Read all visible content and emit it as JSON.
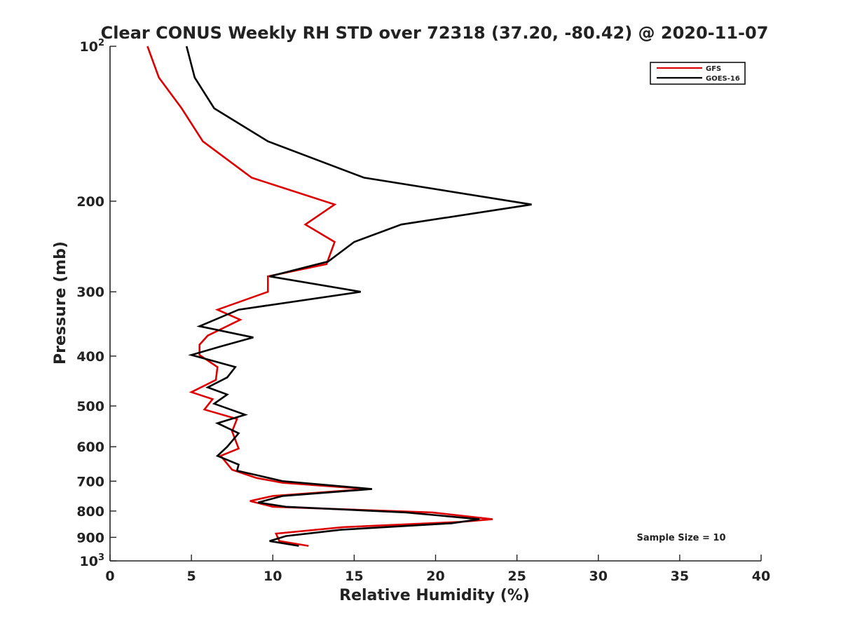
{
  "chart_data": {
    "type": "line",
    "title": "Clear CONUS Weekly RH STD over 72318 (37.20, -80.42) @ 2020-11-07",
    "xlabel": "Relative Humidity (%)",
    "ylabel": "Pressure (mb)",
    "xlim": [
      0,
      40
    ],
    "ylim": [
      100,
      1000
    ],
    "y_scale": "log",
    "y_reversed": true,
    "x_ticks": [
      "0",
      "5",
      "10",
      "15",
      "20",
      "25",
      "30",
      "35",
      "40"
    ],
    "y_ticks": [
      {
        "value": 100,
        "base": "10",
        "exp": "2"
      },
      {
        "value": 200,
        "label": "200"
      },
      {
        "value": 300,
        "label": "300"
      },
      {
        "value": 400,
        "label": "400"
      },
      {
        "value": 500,
        "label": "500"
      },
      {
        "value": 600,
        "label": "600"
      },
      {
        "value": 700,
        "label": "700"
      },
      {
        "value": 800,
        "label": "800"
      },
      {
        "value": 900,
        "label": "900"
      },
      {
        "value": 1000,
        "base": "10",
        "exp": "3"
      }
    ],
    "grid": false,
    "legend_position": "top-right",
    "annotation": "Sample Size = 10",
    "series": [
      {
        "name": "GFS",
        "color": "#dd0000",
        "points": [
          [
            2.3,
            100
          ],
          [
            3.0,
            115
          ],
          [
            4.4,
            132
          ],
          [
            5.7,
            153
          ],
          [
            8.7,
            180
          ],
          [
            13.8,
            203
          ],
          [
            12.0,
            222
          ],
          [
            13.8,
            240
          ],
          [
            13.3,
            265
          ],
          [
            9.7,
            280
          ],
          [
            9.7,
            300
          ],
          [
            6.6,
            325
          ],
          [
            8.0,
            340
          ],
          [
            6.0,
            365
          ],
          [
            5.5,
            380
          ],
          [
            5.5,
            398
          ],
          [
            6.6,
            420
          ],
          [
            6.5,
            445
          ],
          [
            5.0,
            470
          ],
          [
            6.3,
            485
          ],
          [
            5.8,
            508
          ],
          [
            7.8,
            530
          ],
          [
            7.5,
            560
          ],
          [
            7.9,
            605
          ],
          [
            6.8,
            625
          ],
          [
            7.5,
            665
          ],
          [
            9.0,
            690
          ],
          [
            10.6,
            705
          ],
          [
            15.8,
            725
          ],
          [
            10.0,
            748
          ],
          [
            8.6,
            765
          ],
          [
            10.0,
            785
          ],
          [
            19.8,
            805
          ],
          [
            23.5,
            830
          ],
          [
            21.5,
            840
          ],
          [
            14.3,
            860
          ],
          [
            10.2,
            885
          ],
          [
            10.4,
            915
          ],
          [
            12.2,
            935
          ]
        ]
      },
      {
        "name": "GOES-16",
        "color": "#000000",
        "points": [
          [
            4.7,
            100
          ],
          [
            5.2,
            115
          ],
          [
            6.4,
            132
          ],
          [
            9.7,
            153
          ],
          [
            15.6,
            180
          ],
          [
            25.9,
            203
          ],
          [
            17.9,
            222
          ],
          [
            15.0,
            240
          ],
          [
            13.4,
            262
          ],
          [
            9.8,
            280
          ],
          [
            15.4,
            300
          ],
          [
            7.9,
            325
          ],
          [
            5.5,
            350
          ],
          [
            8.8,
            368
          ],
          [
            6.8,
            383
          ],
          [
            5.0,
            398
          ],
          [
            7.7,
            420
          ],
          [
            7.2,
            440
          ],
          [
            6.0,
            460
          ],
          [
            7.2,
            475
          ],
          [
            6.4,
            495
          ],
          [
            8.3,
            520
          ],
          [
            6.6,
            540
          ],
          [
            7.9,
            565
          ],
          [
            7.2,
            600
          ],
          [
            6.6,
            625
          ],
          [
            7.9,
            650
          ],
          [
            7.8,
            668
          ],
          [
            8.9,
            680
          ],
          [
            10.6,
            700
          ],
          [
            16.1,
            725
          ],
          [
            10.6,
            748
          ],
          [
            9.1,
            770
          ],
          [
            10.8,
            785
          ],
          [
            18.2,
            805
          ],
          [
            22.7,
            830
          ],
          [
            21.0,
            845
          ],
          [
            14.2,
            870
          ],
          [
            10.8,
            895
          ],
          [
            9.8,
            915
          ],
          [
            11.6,
            935
          ]
        ]
      }
    ]
  }
}
